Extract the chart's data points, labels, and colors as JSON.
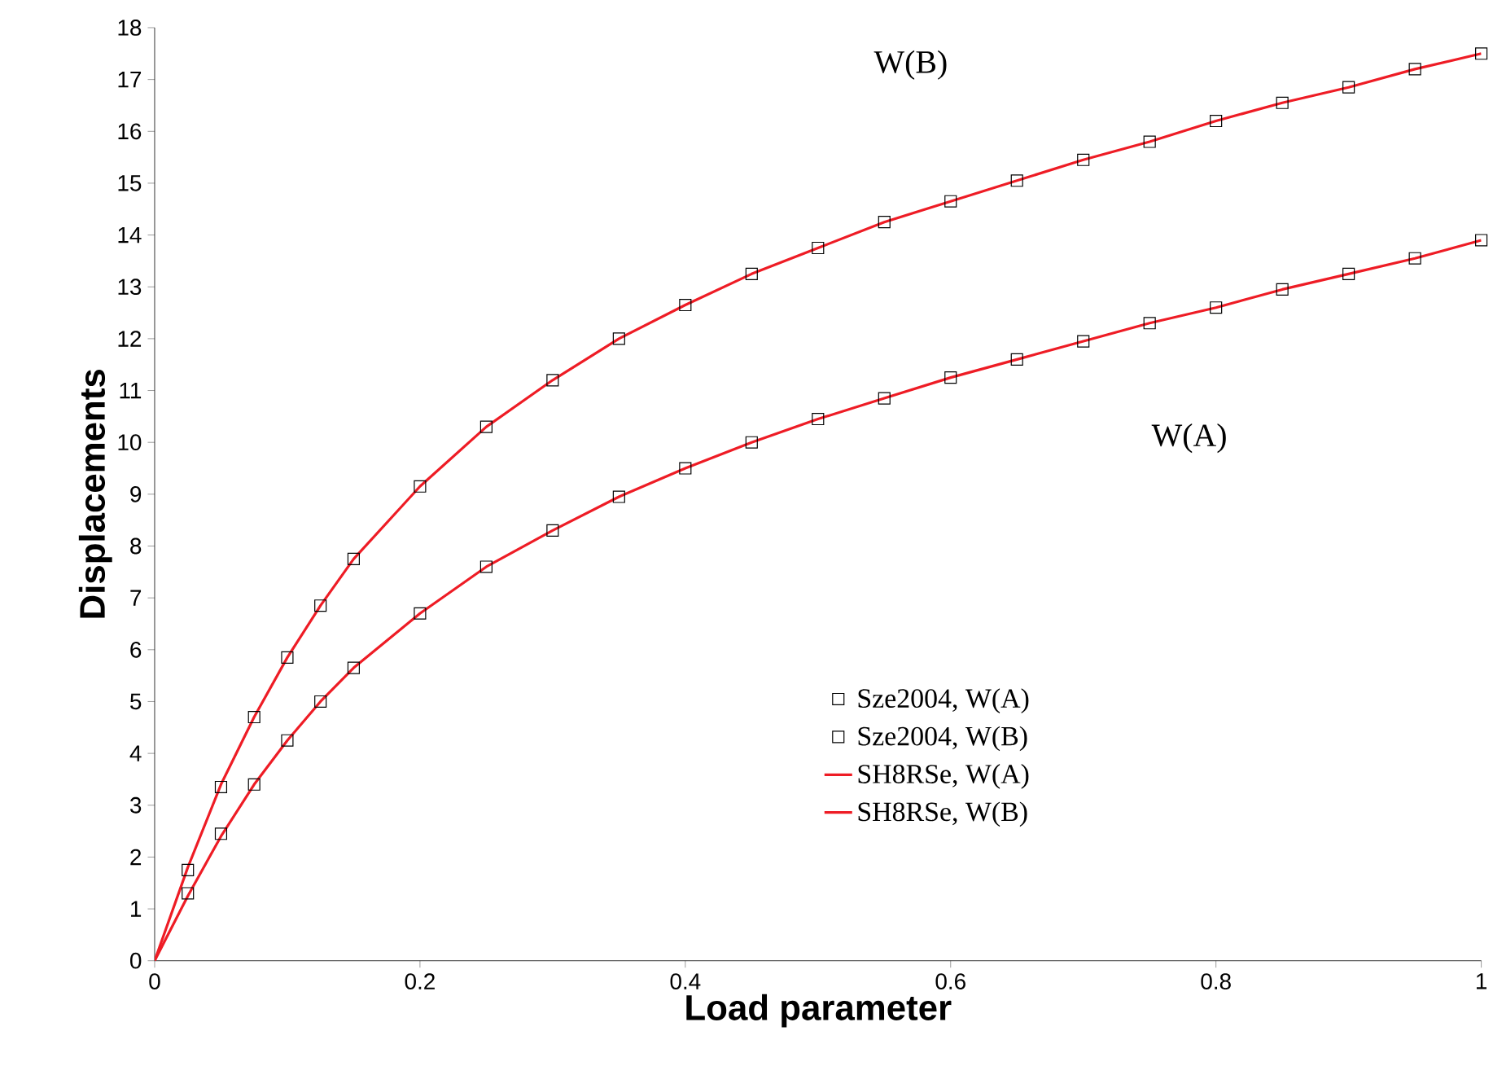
{
  "chart_data": {
    "type": "line",
    "xlabel": "Load parameter",
    "ylabel": "Displacements",
    "xlim": [
      0,
      1
    ],
    "ylim": [
      0,
      18
    ],
    "xticks": [
      0,
      0.2,
      0.4,
      0.6,
      0.8,
      1
    ],
    "yticks": [
      0,
      1,
      2,
      3,
      4,
      5,
      6,
      7,
      8,
      9,
      10,
      11,
      12,
      13,
      14,
      15,
      16,
      17,
      18
    ],
    "grid": false,
    "legend": "right",
    "series": [
      {
        "name": "Sze2004, W(A)",
        "type": "scatter",
        "marker": "square",
        "color": "#000000",
        "x": [
          0.025,
          0.05,
          0.075,
          0.1,
          0.125,
          0.15,
          0.2,
          0.25,
          0.3,
          0.35,
          0.4,
          0.45,
          0.5,
          0.55,
          0.6,
          0.65,
          0.7,
          0.75,
          0.8,
          0.85,
          0.9,
          0.95,
          1.0
        ],
        "values": [
          1.3,
          2.45,
          3.4,
          4.25,
          5.0,
          5.65,
          6.7,
          7.6,
          8.3,
          8.95,
          9.5,
          10.0,
          10.45,
          10.85,
          11.25,
          11.6,
          11.95,
          12.3,
          12.6,
          12.95,
          13.25,
          13.55,
          13.9
        ]
      },
      {
        "name": "Sze2004, W(B)",
        "type": "scatter",
        "marker": "square",
        "color": "#000000",
        "x": [
          0.025,
          0.05,
          0.075,
          0.1,
          0.125,
          0.15,
          0.2,
          0.25,
          0.3,
          0.35,
          0.4,
          0.45,
          0.5,
          0.55,
          0.6,
          0.65,
          0.7,
          0.75,
          0.8,
          0.85,
          0.9,
          0.95,
          1.0
        ],
        "values": [
          1.75,
          3.35,
          4.7,
          5.85,
          6.85,
          7.75,
          9.15,
          10.3,
          11.2,
          12.0,
          12.65,
          13.25,
          13.75,
          14.25,
          14.65,
          15.05,
          15.45,
          15.8,
          16.2,
          16.55,
          16.85,
          17.2,
          17.5
        ]
      },
      {
        "name": "SH8RSe, W(A)",
        "marker": "none",
        "line_style": "solid",
        "color": "#ee1c25",
        "x": [
          0,
          0.025,
          0.05,
          0.075,
          0.1,
          0.125,
          0.15,
          0.2,
          0.25,
          0.3,
          0.35,
          0.4,
          0.45,
          0.5,
          0.55,
          0.6,
          0.65,
          0.7,
          0.75,
          0.8,
          0.85,
          0.9,
          0.95,
          1.0
        ],
        "values": [
          0,
          1.25,
          2.4,
          3.4,
          4.25,
          5.0,
          5.65,
          6.7,
          7.6,
          8.3,
          8.95,
          9.5,
          10.0,
          10.45,
          10.85,
          11.25,
          11.6,
          11.95,
          12.3,
          12.6,
          12.95,
          13.25,
          13.55,
          13.9
        ]
      },
      {
        "name": "SH8RSe, W(B)",
        "marker": "none",
        "line_style": "solid",
        "color": "#ee1c25",
        "x": [
          0,
          0.025,
          0.05,
          0.075,
          0.1,
          0.125,
          0.15,
          0.2,
          0.25,
          0.3,
          0.35,
          0.4,
          0.45,
          0.5,
          0.55,
          0.6,
          0.65,
          0.7,
          0.75,
          0.8,
          0.85,
          0.9,
          0.95,
          1.0
        ],
        "values": [
          0,
          1.8,
          3.4,
          4.7,
          5.85,
          6.85,
          7.75,
          9.15,
          10.3,
          11.2,
          12.0,
          12.65,
          13.25,
          13.75,
          14.25,
          14.65,
          15.05,
          15.45,
          15.8,
          16.2,
          16.55,
          16.85,
          17.2,
          17.5
        ]
      }
    ],
    "annotations": [
      "W(B)",
      "W(A)"
    ]
  }
}
